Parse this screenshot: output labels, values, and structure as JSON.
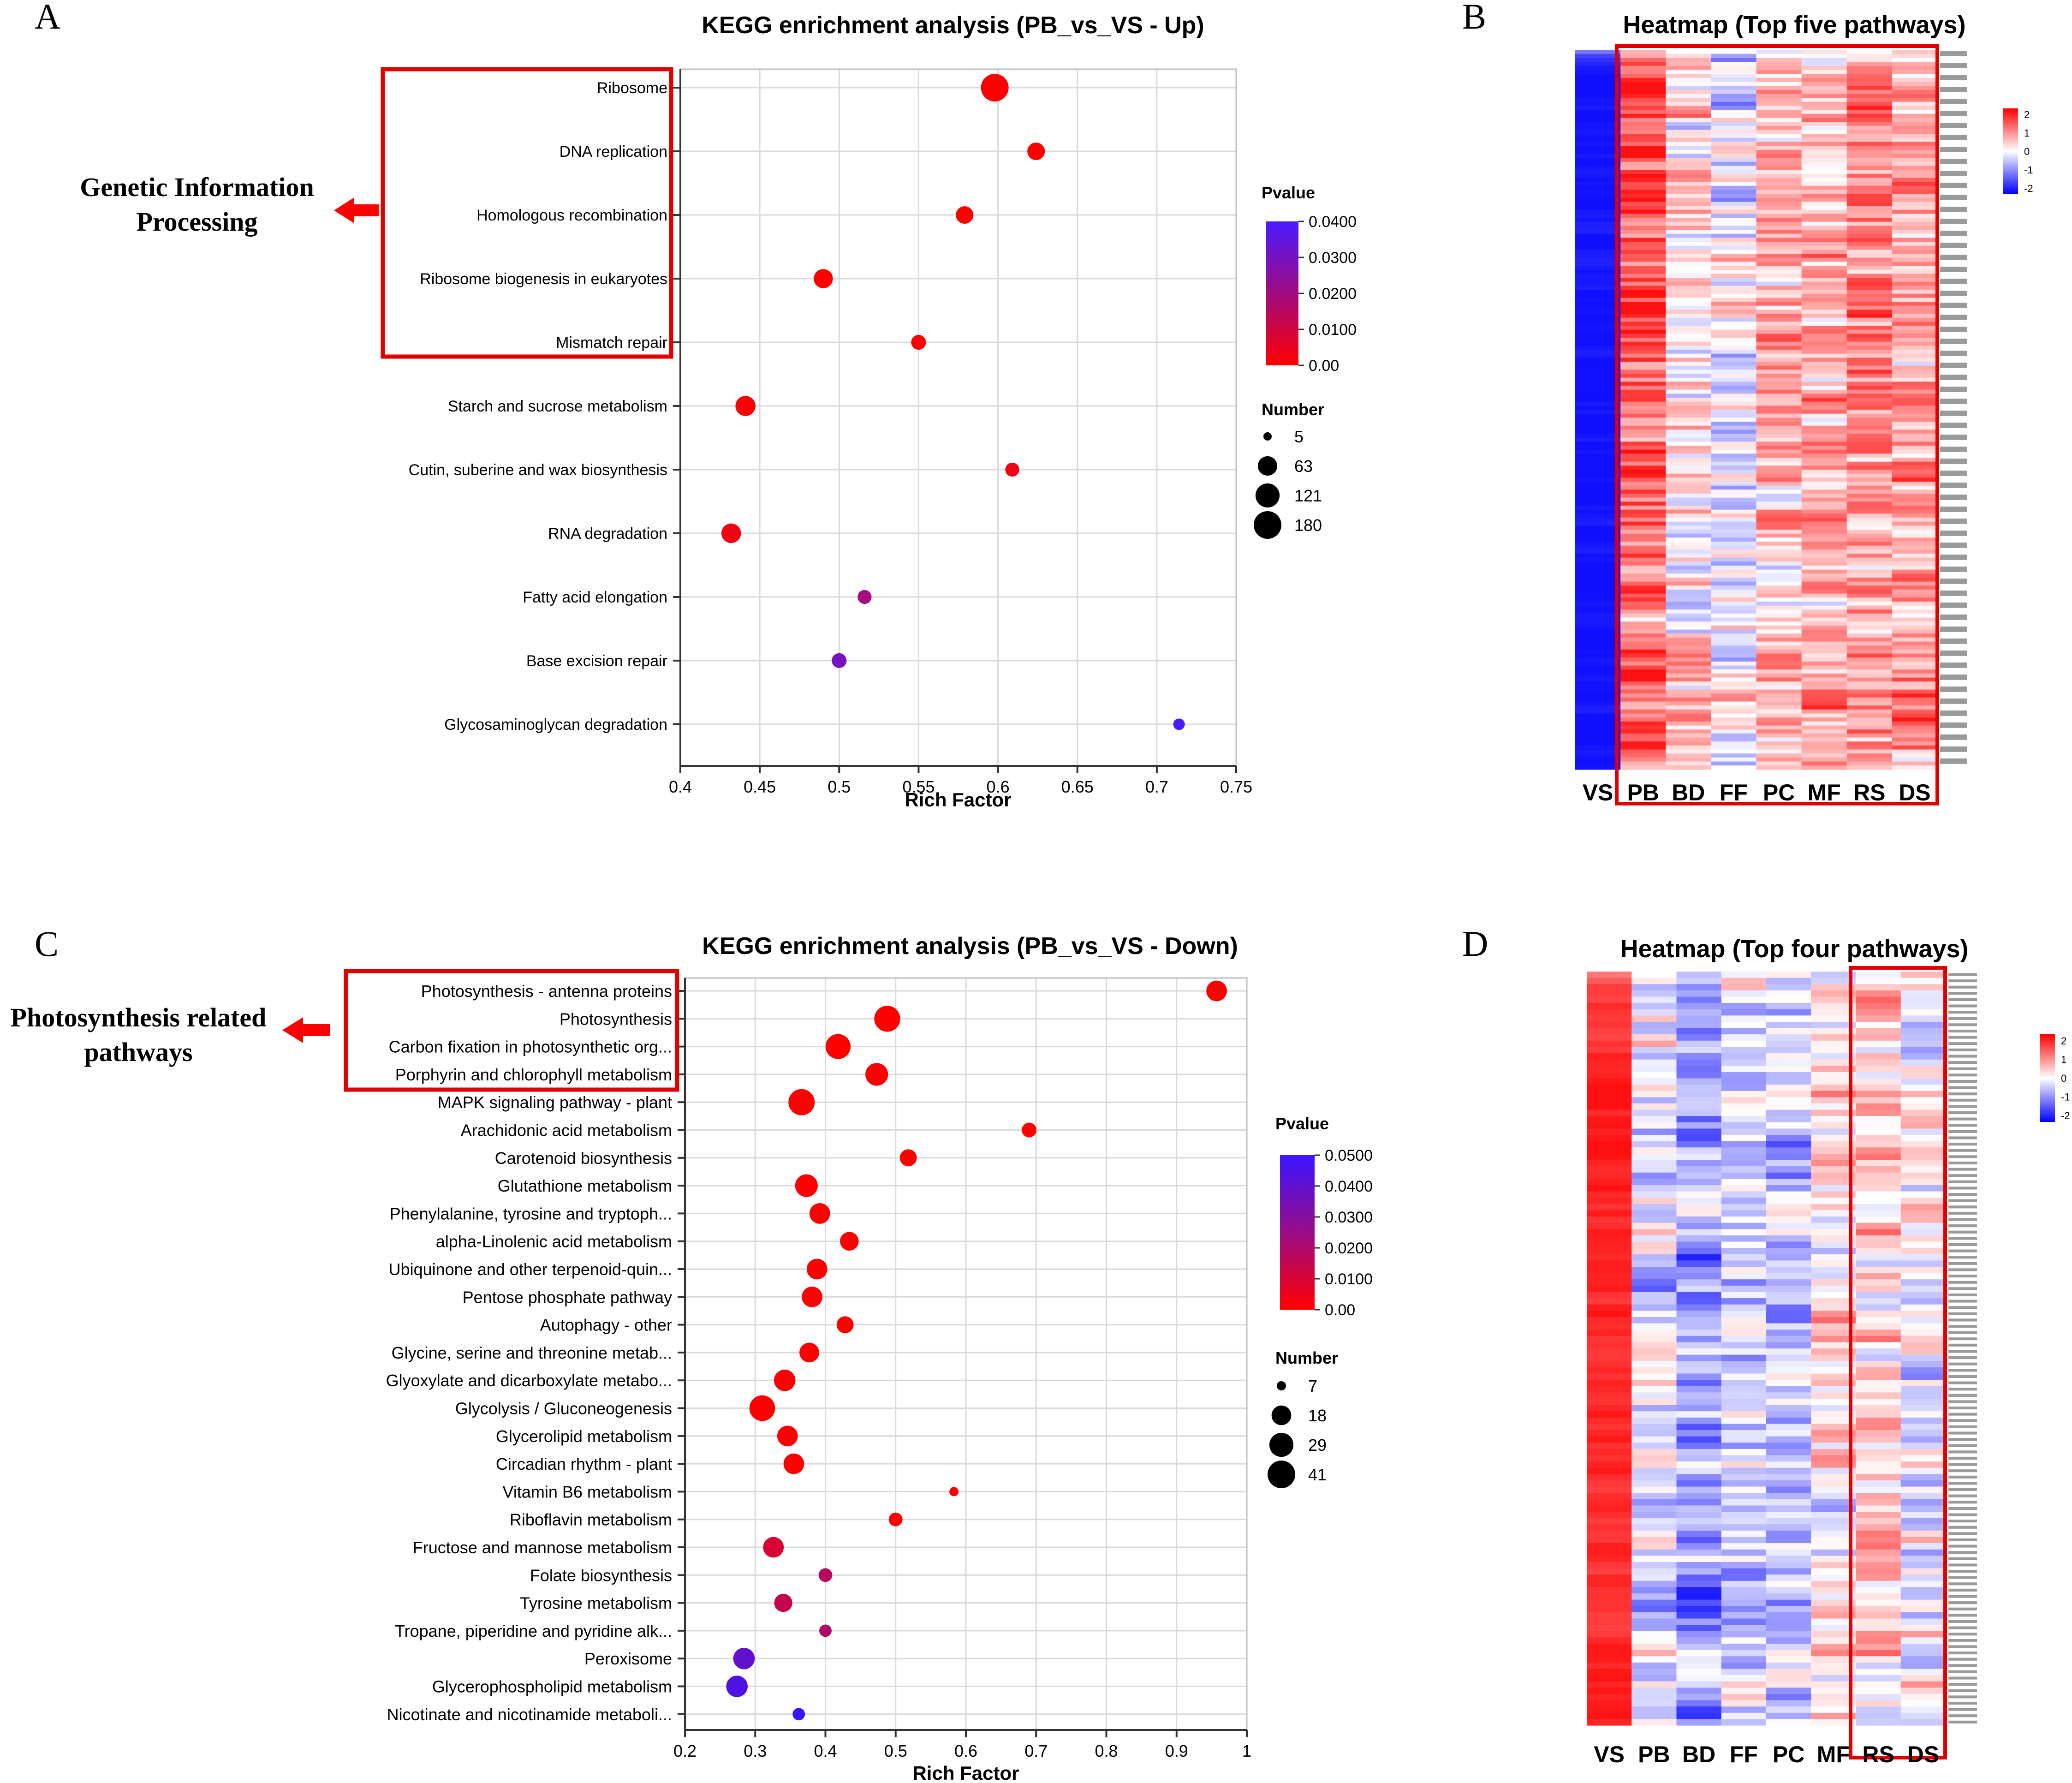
{
  "panel_letters": [
    "A",
    "B",
    "C",
    "D"
  ],
  "colors": {
    "high": "#ff0000",
    "low_a": "#4a1aff",
    "low_c": "#3a14ff",
    "highlight": "#e00000",
    "grid": "#d8d8d8",
    "heat_red": "#ff1a1a",
    "heat_blue": "#1a1aff"
  },
  "panelA": {
    "callout": [
      "Genetic Information",
      "Processing"
    ],
    "chart_data": {
      "type": "scatter",
      "title": "KEGG enrichment analysis (PB_vs_VS - Up)",
      "xlabel": "Rich Factor",
      "ylabel": "",
      "xlim": [
        0.4,
        0.75
      ],
      "xticks": [
        0.4,
        0.45,
        0.5,
        0.55,
        0.6,
        0.65,
        0.7,
        0.75
      ],
      "grid": true,
      "categories": [
        "Ribosome",
        "DNA replication",
        "Homologous recombination",
        "Ribosome biogenesis in eukaryotes",
        "Mismatch repair",
        "Starch and sucrose metabolism",
        "Cutin, suberine and wax biosynthesis",
        "RNA degradation",
        "Fatty acid elongation",
        "Base excision repair",
        "Glycosaminoglycan degradation"
      ],
      "x": [
        0.598,
        0.624,
        0.579,
        0.49,
        0.55,
        0.441,
        0.609,
        0.432,
        0.516,
        0.5,
        0.714
      ],
      "number": [
        180,
        45,
        45,
        60,
        25,
        70,
        20,
        65,
        20,
        25,
        10
      ],
      "pvalue": [
        0.0,
        0.0,
        0.0,
        0.0,
        0.0,
        0.001,
        0.003,
        0.003,
        0.02,
        0.03,
        0.04
      ],
      "highlighted": [
        "Ribosome",
        "DNA replication",
        "Homologous recombination",
        "Ribosome biogenesis in eukaryotes",
        "Mismatch repair"
      ],
      "color_legend": {
        "title": "Pvalue",
        "range": [
          0.0,
          0.04
        ],
        "ticks": [
          "0.0400",
          "0.0300",
          "0.0200",
          "0.0100",
          "0.00"
        ]
      },
      "size_legend": {
        "title": "Number",
        "values": [
          5,
          63,
          121,
          180
        ]
      },
      "legend_position": "right"
    }
  },
  "panelC": {
    "callout": [
      "Photosynthesis related",
      "pathways"
    ],
    "chart_data": {
      "type": "scatter",
      "title": "KEGG enrichment analysis (PB_vs_VS - Down)",
      "xlabel": "Rich Factor",
      "ylabel": "",
      "xlim": [
        0.2,
        1.0
      ],
      "xticks": [
        0.2,
        0.3,
        0.4,
        0.5,
        0.6,
        0.7,
        0.8,
        0.9,
        1
      ],
      "grid": true,
      "categories": [
        "Photosynthesis - antenna proteins",
        "Photosynthesis",
        "Carbon fixation in photosynthetic org...",
        "Porphyrin and chlorophyll metabolism",
        "MAPK signaling pathway - plant",
        "Arachidonic acid metabolism",
        "Carotenoid biosynthesis",
        "Glutathione metabolism",
        "Phenylalanine, tyrosine and tryptoph...",
        "alpha-Linolenic acid metabolism",
        "Ubiquinone and other terpenoid-quin...",
        "Pentose phosphate pathway",
        "Autophagy - other",
        "Glycine, serine and threonine metab...",
        "Glyoxylate and dicarboxylate metabo...",
        "Glycolysis / Gluconeogenesis",
        "Glycerolipid metabolism",
        "Circadian rhythm - plant",
        "Vitamin B6 metabolism",
        "Riboflavin metabolism",
        "Fructose and mannose metabolism",
        "Folate biosynthesis",
        "Tyrosine metabolism",
        "Tropane, piperidine and pyridine alk...",
        "Peroxisome",
        "Glycerophospholipid metabolism",
        "Nicotinate and nicotinamide metaboli..."
      ],
      "x": [
        0.957,
        0.488,
        0.418,
        0.473,
        0.366,
        0.69,
        0.518,
        0.373,
        0.392,
        0.434,
        0.388,
        0.381,
        0.428,
        0.377,
        0.342,
        0.31,
        0.346,
        0.355,
        0.583,
        0.5,
        0.326,
        0.4,
        0.34,
        0.4,
        0.284,
        0.274,
        0.362
      ],
      "number": [
        20,
        35,
        32,
        25,
        36,
        10,
        13,
        25,
        20,
        16,
        20,
        20,
        13,
        18,
        22,
        34,
        20,
        20,
        7,
        9,
        20,
        9,
        15,
        8,
        22,
        22,
        8
      ],
      "pvalue": [
        0.0,
        0.0,
        0.0,
        0.0,
        0.0,
        0.0,
        0.0,
        0.0,
        0.0,
        0.0,
        0.0,
        0.0,
        0.0,
        0.0,
        0.0,
        0.0,
        0.0,
        0.0,
        0.0,
        0.0,
        0.01,
        0.018,
        0.015,
        0.02,
        0.04,
        0.045,
        0.05
      ],
      "highlighted": [
        "Photosynthesis - antenna proteins",
        "Photosynthesis",
        "Carbon fixation in photosynthetic org...",
        "Porphyrin and chlorophyll metabolism"
      ],
      "color_legend": {
        "title": "Pvalue",
        "range": [
          0.0,
          0.05
        ],
        "ticks": [
          "0.0500",
          "0.0400",
          "0.0300",
          "0.0200",
          "0.0100",
          "0.00"
        ]
      },
      "size_legend": {
        "title": "Number",
        "values": [
          7,
          18,
          29,
          41
        ]
      },
      "legend_position": "right"
    }
  },
  "panelB": {
    "chart_data": {
      "type": "heatmap",
      "title": "Heatmap (Top five pathways)",
      "columns": [
        "VS",
        "PB",
        "BD",
        "FF",
        "PC",
        "MF",
        "RS",
        "DS"
      ],
      "highlighted_columns": [
        "PB",
        "BD",
        "FF",
        "PC",
        "MF",
        "RS",
        "DS"
      ],
      "column_bias": [
        -2,
        1.3,
        0.2,
        -0.2,
        0.5,
        0.6,
        0.9,
        0.7
      ],
      "rows": 180,
      "scale_ticks": [
        "2",
        "1",
        "0",
        "-1",
        "-2"
      ],
      "scale_range": [
        -2,
        2
      ]
    }
  },
  "panelD": {
    "chart_data": {
      "type": "heatmap",
      "title": "Heatmap (Top four pathways)",
      "columns": [
        "VS",
        "PB",
        "BD",
        "FF",
        "PC",
        "MF",
        "RS",
        "DS"
      ],
      "highlighted_columns": [
        "RS",
        "DS"
      ],
      "column_bias": [
        1.8,
        -0.3,
        -0.8,
        -0.4,
        -0.5,
        0.2,
        0.3,
        -0.1
      ],
      "rows": 120,
      "scale_ticks": [
        "2",
        "1",
        "0",
        "-1",
        "-2"
      ],
      "scale_range": [
        -2,
        2
      ]
    }
  }
}
